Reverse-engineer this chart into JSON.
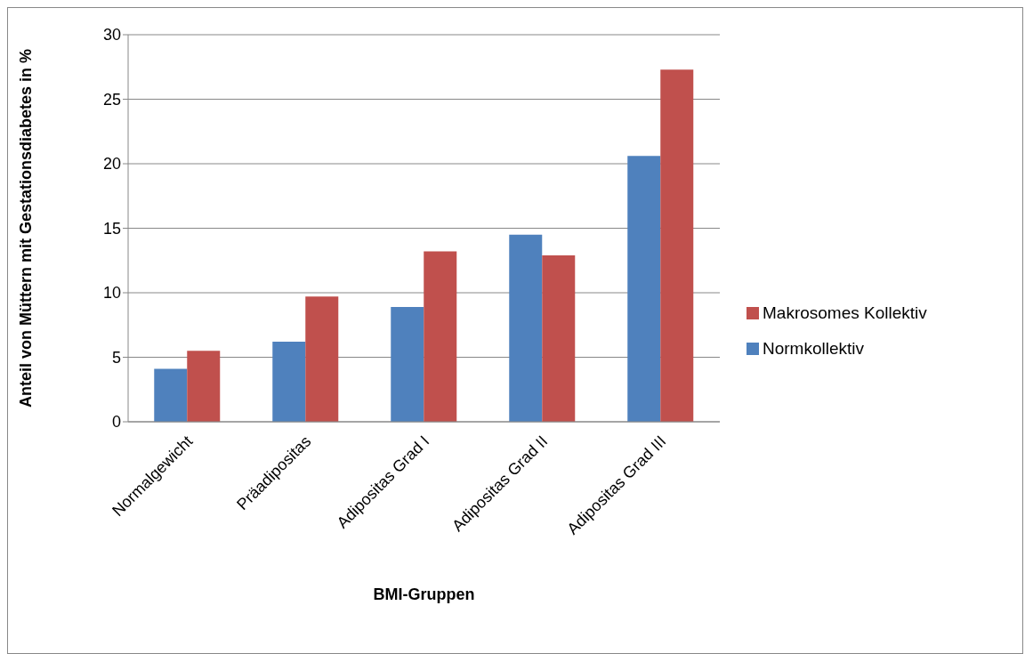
{
  "chart_data": {
    "type": "bar",
    "xlabel": "BMI-Gruppen",
    "ylabel": "Anteil von Müttern mit Gestationsdiabetes in %",
    "categories": [
      "Normalgewicht",
      "Präadipositas",
      "Adipositas Grad I",
      "Adipositas Grad II",
      "Adipositas Grad III"
    ],
    "series": [
      {
        "name": "Normkollektiv",
        "color": "#4f81bd",
        "values": [
          4.1,
          6.2,
          8.9,
          14.5,
          20.6
        ]
      },
      {
        "name": "Makrosomes Kollektiv",
        "color": "#c0504d",
        "values": [
          5.5,
          9.7,
          13.2,
          12.9,
          27.3
        ]
      }
    ],
    "ylim": [
      0,
      30
    ],
    "yticks": [
      0,
      5,
      10,
      15,
      20,
      25,
      30
    ],
    "grid": "y",
    "legend": "right"
  }
}
